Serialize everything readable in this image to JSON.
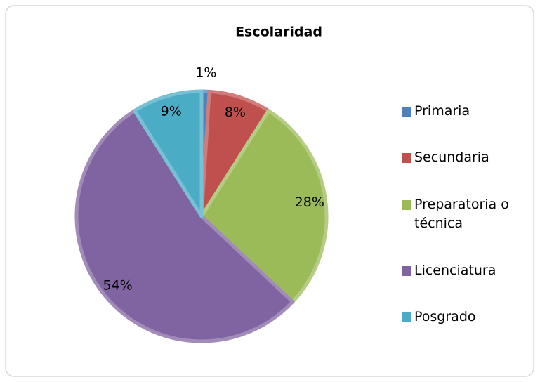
{
  "chart_data": {
    "type": "pie",
    "title": "Escolaridad",
    "categories": [
      "Primaria",
      "Secundaria",
      "Preparatoria o técnica",
      "Licenciatura",
      "Posgrado"
    ],
    "values": [
      1,
      8,
      28,
      54,
      9
    ],
    "value_labels": [
      "1%",
      "8%",
      "28%",
      "54%",
      "9%"
    ],
    "colors": [
      "#4f81bd",
      "#c0504d",
      "#9bbb59",
      "#8064a2",
      "#4bacc6"
    ],
    "legend": "right"
  }
}
